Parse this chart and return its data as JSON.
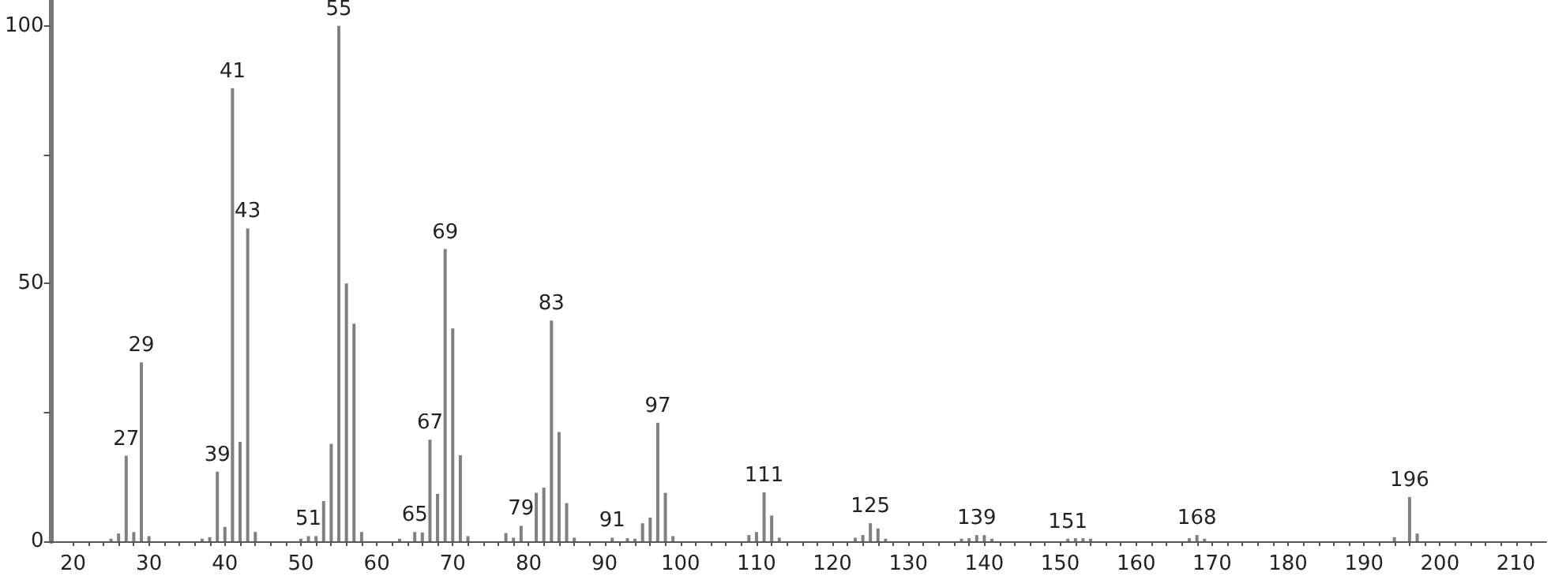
{
  "chart_data": {
    "type": "bar",
    "x": [
      25,
      26,
      27,
      28,
      29,
      30,
      37,
      38,
      39,
      40,
      41,
      42,
      43,
      44,
      50,
      51,
      52,
      53,
      54,
      55,
      56,
      57,
      58,
      63,
      65,
      66,
      67,
      68,
      69,
      70,
      71,
      72,
      77,
      78,
      79,
      81,
      82,
      83,
      84,
      85,
      86,
      91,
      93,
      94,
      95,
      96,
      97,
      98,
      99,
      109,
      110,
      111,
      112,
      113,
      123,
      124,
      125,
      126,
      127,
      137,
      138,
      139,
      140,
      141,
      151,
      152,
      153,
      154,
      167,
      168,
      169,
      194,
      196,
      197
    ],
    "values": [
      0.5,
      1.5,
      16.6,
      1.8,
      34.7,
      1,
      0.5,
      0.8,
      13.5,
      2.8,
      87.9,
      19.3,
      60.7,
      1.8,
      0.5,
      1,
      1,
      7.8,
      18.9,
      100,
      50,
      42.2,
      1.8,
      0.5,
      1.8,
      1.7,
      19.7,
      9.2,
      56.7,
      41.3,
      16.7,
      1,
      1.6,
      0.7,
      3,
      9.4,
      10.4,
      42.8,
      21.2,
      7.4,
      0.7,
      0.7,
      0.6,
      0.5,
      3.5,
      4.6,
      23,
      9.4,
      1,
      1.2,
      1.8,
      9.5,
      5,
      0.7,
      0.7,
      1.2,
      3.5,
      2.5,
      0.5,
      0.5,
      0.6,
      1.2,
      1.2,
      0.5,
      0.5,
      0.6,
      0.6,
      0.5,
      0.6,
      1.2,
      0.5,
      0.8,
      8.6,
      1.5
    ],
    "annotations": [
      {
        "text": "27",
        "x": 27,
        "y": 16.6
      },
      {
        "text": "29",
        "x": 29,
        "y": 34.7
      },
      {
        "text": "39",
        "x": 39,
        "y": 13.5
      },
      {
        "text": "41",
        "x": 41,
        "y": 87.9
      },
      {
        "text": "43",
        "x": 43,
        "y": 60.7
      },
      {
        "text": "51",
        "x": 51,
        "y": 1
      },
      {
        "text": "55",
        "x": 55,
        "y": 100
      },
      {
        "text": "65",
        "x": 65,
        "y": 1.8
      },
      {
        "text": "67",
        "x": 67,
        "y": 19.7
      },
      {
        "text": "69",
        "x": 69,
        "y": 56.7
      },
      {
        "text": "79",
        "x": 79,
        "y": 3
      },
      {
        "text": "83",
        "x": 83,
        "y": 42.8
      },
      {
        "text": "91",
        "x": 91,
        "y": 0.7
      },
      {
        "text": "97",
        "x": 97,
        "y": 23
      },
      {
        "text": "111",
        "x": 111,
        "y": 9.5
      },
      {
        "text": "125",
        "x": 125,
        "y": 3.5
      },
      {
        "text": "139",
        "x": 139,
        "y": 1.2
      },
      {
        "text": "151",
        "x": 151,
        "y": 0.5
      },
      {
        "text": "168",
        "x": 168,
        "y": 1.2
      },
      {
        "text": "196",
        "x": 196,
        "y": 8.6
      }
    ],
    "color": "#808080",
    "xlim": [
      17,
      214
    ],
    "xticks": [
      20,
      {
        "value": 22,
        "label": null
      },
      {
        "value": 24,
        "label": null
      },
      {
        "value": 26,
        "label": null
      },
      {
        "value": 28,
        "label": null
      },
      30,
      {
        "value": 32,
        "label": null
      },
      {
        "value": 34,
        "label": null
      },
      {
        "value": 36,
        "label": null
      },
      {
        "value": 38,
        "label": null
      },
      40,
      {
        "value": 42,
        "label": null
      },
      {
        "value": 44,
        "label": null
      },
      {
        "value": 46,
        "label": null
      },
      {
        "value": 48,
        "label": null
      },
      50,
      {
        "value": 52,
        "label": null
      },
      {
        "value": 54,
        "label": null
      },
      {
        "value": 56,
        "label": null
      },
      {
        "value": 58,
        "label": null
      },
      60,
      {
        "value": 62,
        "label": null
      },
      {
        "value": 64,
        "label": null
      },
      {
        "value": 66,
        "label": null
      },
      {
        "value": 68,
        "label": null
      },
      70,
      {
        "value": 72,
        "label": null
      },
      {
        "value": 74,
        "label": null
      },
      {
        "value": 76,
        "label": null
      },
      {
        "value": 78,
        "label": null
      },
      80,
      {
        "value": 82,
        "label": null
      },
      {
        "value": 84,
        "label": null
      },
      {
        "value": 86,
        "label": null
      },
      {
        "value": 88,
        "label": null
      },
      90,
      {
        "value": 92,
        "label": null
      },
      {
        "value": 94,
        "label": null
      },
      {
        "value": 96,
        "label": null
      },
      {
        "value": 98,
        "label": null
      },
      100,
      {
        "value": 102,
        "label": null
      },
      {
        "value": 104,
        "label": null
      },
      {
        "value": 106,
        "label": null
      },
      {
        "value": 108,
        "label": null
      },
      110,
      {
        "value": 112,
        "label": null
      },
      {
        "value": 114,
        "label": null
      },
      {
        "value": 116,
        "label": null
      },
      {
        "value": 118,
        "label": null
      },
      120,
      {
        "value": 122,
        "label": null
      },
      {
        "value": 124,
        "label": null
      },
      {
        "value": 126,
        "label": null
      },
      {
        "value": 128,
        "label": null
      },
      130,
      {
        "value": 132,
        "label": null
      },
      {
        "value": 134,
        "label": null
      },
      {
        "value": 136,
        "label": null
      },
      {
        "value": 138,
        "label": null
      },
      140,
      {
        "value": 142,
        "label": null
      },
      {
        "value": 144,
        "label": null
      },
      {
        "value": 146,
        "label": null
      },
      {
        "value": 148,
        "label": null
      },
      150,
      {
        "value": 152,
        "label": null
      },
      {
        "value": 154,
        "label": null
      },
      {
        "value": 156,
        "label": null
      },
      {
        "value": 158,
        "label": null
      },
      160,
      {
        "value": 162,
        "label": null
      },
      {
        "value": 164,
        "label": null
      },
      {
        "value": 166,
        "label": null
      },
      {
        "value": 168,
        "label": null
      },
      170,
      {
        "value": 172,
        "label": null
      },
      {
        "value": 174,
        "label": null
      },
      {
        "value": 176,
        "label": null
      },
      {
        "value": 178,
        "label": null
      },
      180,
      {
        "value": 182,
        "label": null
      },
      {
        "value": 184,
        "label": null
      },
      {
        "value": 186,
        "label": null
      },
      {
        "value": 188,
        "label": null
      },
      190,
      {
        "value": 192,
        "label": null
      },
      {
        "value": 194,
        "label": null
      },
      {
        "value": 196,
        "label": null
      },
      {
        "value": 198,
        "label": null
      },
      200,
      {
        "value": 202,
        "label": null
      },
      {
        "value": 204,
        "label": null
      },
      {
        "value": 206,
        "label": null
      },
      {
        "value": 208,
        "label": null
      },
      210,
      {
        "value": 212,
        "label": null
      }
    ],
    "ylim": [
      0,
      105
    ],
    "yticks": [
      0,
      {
        "value": 25,
        "label": null
      },
      50,
      {
        "value": 75,
        "label": null
      },
      100
    ],
    "grid": false
  }
}
